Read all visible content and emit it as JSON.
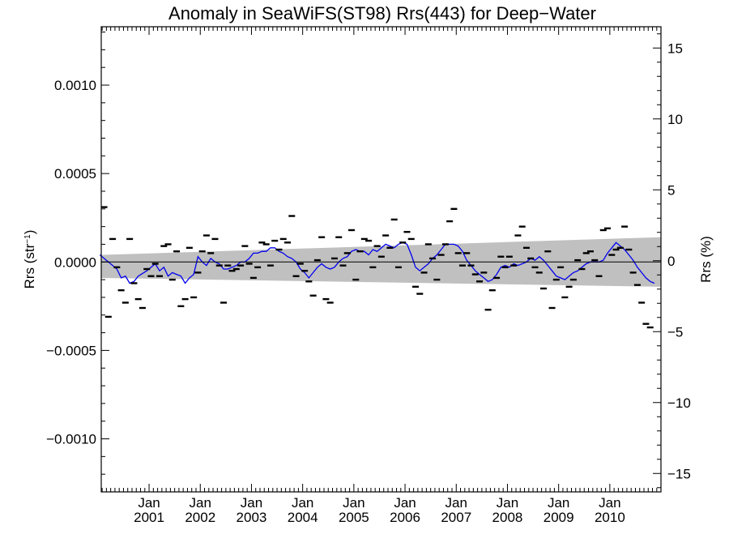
{
  "chart_data": {
    "type": "scatter",
    "title": "Anomaly in SeaWiFS(ST98) Rrs(443) for Deep−Water",
    "ylabel_left": "Rrs (str⁻¹)",
    "ylabel_right": "Rrs (%)",
    "x_ticks": [
      {
        "month": "Jan",
        "year": "2001"
      },
      {
        "month": "Jan",
        "year": "2002"
      },
      {
        "month": "Jan",
        "year": "2003"
      },
      {
        "month": "Jan",
        "year": "2004"
      },
      {
        "month": "Jan",
        "year": "2005"
      },
      {
        "month": "Jan",
        "year": "2006"
      },
      {
        "month": "Jan",
        "year": "2007"
      },
      {
        "month": "Jan",
        "year": "2008"
      },
      {
        "month": "Jan",
        "year": "2009"
      },
      {
        "month": "Jan",
        "year": "2010"
      }
    ],
    "x_range": [
      "2000-01-25",
      "2010-12-31"
    ],
    "y_left_range": [
      -0.0013,
      0.00133
    ],
    "y_left_ticks": [
      "0.0010",
      "0.0005",
      "0.0000",
      "−0.0005",
      "−0.0010"
    ],
    "y_left_tick_values": [
      0.001,
      0.0005,
      0.0,
      -0.0005,
      -0.001
    ],
    "y_right_range": [
      -16.3,
      16.5
    ],
    "y_right_ticks": [
      "15",
      "10",
      "5",
      "0",
      "−5",
      "−10",
      "−15"
    ],
    "y_right_tick_values": [
      15,
      10,
      5,
      0,
      -5,
      -10,
      -15
    ],
    "zero_line": 0,
    "confidence_band": {
      "color": "#c0c0c0",
      "start": {
        "date": "2000-01-25",
        "upper": 4e-05,
        "lower": -9e-05
      },
      "end": {
        "date": "2010-12-31",
        "upper": 0.00014,
        "lower": -0.00014
      }
    },
    "series": [
      {
        "style": "dash-markers",
        "color": "#000000",
        "points": [
          [
            "2000-02",
            0.00031
          ],
          [
            "2000-03",
            -0.00031
          ],
          [
            "2000-04",
            0.00013
          ],
          [
            "2000-05",
            -3e-05
          ],
          [
            "2000-06",
            -0.00016
          ],
          [
            "2000-07",
            -0.00023
          ],
          [
            "2000-08",
            0.00013
          ],
          [
            "2000-09",
            -0.00012
          ],
          [
            "2000-10",
            -0.00021
          ],
          [
            "2000-11",
            -0.00026
          ],
          [
            "2000-12",
            -4e-05
          ],
          [
            "2001-01",
            -8e-05
          ],
          [
            "2001-02",
            -1e-05
          ],
          [
            "2001-03",
            -8e-05
          ],
          [
            "2001-04",
            9e-05
          ],
          [
            "2001-05",
            0.0001
          ],
          [
            "2001-06",
            -0.0001
          ],
          [
            "2001-07",
            6e-05
          ],
          [
            "2001-08",
            -0.00025
          ],
          [
            "2001-09",
            -0.00021
          ],
          [
            "2001-10",
            8e-05
          ],
          [
            "2001-11",
            -0.0002
          ],
          [
            "2001-12",
            -6e-05
          ],
          [
            "2002-01",
            6e-05
          ],
          [
            "2002-02",
            0.00015
          ],
          [
            "2002-03",
            5e-05
          ],
          [
            "2002-04",
            0.00013
          ],
          [
            "2002-05",
            -2e-05
          ],
          [
            "2002-06",
            -0.00023
          ],
          [
            "2002-07",
            -2e-05
          ],
          [
            "2002-08",
            -5e-05
          ],
          [
            "2002-09",
            -4e-05
          ],
          [
            "2002-10",
            -2e-05
          ],
          [
            "2002-11",
            9e-05
          ],
          [
            "2002-12",
            -1e-05
          ],
          [
            "2003-01",
            -9e-05
          ],
          [
            "2003-02",
            -3e-05
          ],
          [
            "2003-03",
            0.00011
          ],
          [
            "2003-04",
            0.0001
          ],
          [
            "2003-05",
            -2e-05
          ],
          [
            "2003-06",
            0.00012
          ],
          [
            "2003-07",
            7e-05
          ],
          [
            "2003-08",
            0.00013
          ],
          [
            "2003-09",
            0.00011
          ],
          [
            "2003-10",
            0.00026
          ],
          [
            "2003-11",
            -8e-05
          ],
          [
            "2003-12",
            -1e-05
          ],
          [
            "2004-01",
            -5e-05
          ],
          [
            "2004-02",
            -0.00011
          ],
          [
            "2004-03",
            -0.00019
          ],
          [
            "2004-04",
            1e-05
          ],
          [
            "2004-05",
            0.00014
          ],
          [
            "2004-06",
            -0.00021
          ],
          [
            "2004-07",
            -0.00023
          ],
          [
            "2004-08",
            2e-05
          ],
          [
            "2004-09",
            0.00014
          ],
          [
            "2004-10",
            -2e-05
          ],
          [
            "2004-11",
            5e-05
          ],
          [
            "2004-12",
            0.00018
          ],
          [
            "2005-01",
            -0.0001
          ],
          [
            "2005-02",
            6e-05
          ],
          [
            "2005-03",
            0.00013
          ],
          [
            "2005-04",
            0.00012
          ],
          [
            "2005-05",
            -3e-05
          ],
          [
            "2005-06",
            9e-05
          ],
          [
            "2005-07",
            3e-05
          ],
          [
            "2005-08",
            0.00015
          ],
          [
            "2005-09",
            8e-05
          ],
          [
            "2005-10",
            0.00024
          ],
          [
            "2005-11",
            -3e-05
          ],
          [
            "2005-12",
            0.00011
          ],
          [
            "2006-01",
            0.00017
          ],
          [
            "2006-02",
            0.00013
          ],
          [
            "2006-03",
            -0.00014
          ],
          [
            "2006-04",
            -0.00018
          ],
          [
            "2006-05",
            -6e-05
          ],
          [
            "2006-06",
            0.0001
          ],
          [
            "2006-07",
            2e-05
          ],
          [
            "2006-08",
            -0.0001
          ],
          [
            "2006-09",
            4e-05
          ],
          [
            "2006-10",
            0.0001
          ],
          [
            "2006-11",
            0.00023
          ],
          [
            "2006-12",
            0.0003
          ],
          [
            "2007-01",
            5e-05
          ],
          [
            "2007-02",
            -2e-05
          ],
          [
            "2007-03",
            5e-05
          ],
          [
            "2007-04",
            -2e-05
          ],
          [
            "2007-05",
            -7e-05
          ],
          [
            "2007-06",
            -0.00011
          ],
          [
            "2007-07",
            -6e-05
          ],
          [
            "2007-08",
            -0.00027
          ],
          [
            "2007-09",
            -0.00016
          ],
          [
            "2007-10",
            -9e-05
          ],
          [
            "2007-11",
            3e-05
          ],
          [
            "2007-12",
            -3e-05
          ],
          [
            "2008-01",
            3e-05
          ],
          [
            "2008-02",
            -2e-05
          ],
          [
            "2008-03",
            0.00015
          ],
          [
            "2008-04",
            0.0002
          ],
          [
            "2008-05",
            8e-05
          ],
          [
            "2008-06",
            2e-05
          ],
          [
            "2008-07",
            -3e-05
          ],
          [
            "2008-08",
            -6e-05
          ],
          [
            "2008-09",
            -0.00015
          ],
          [
            "2008-10",
            6e-05
          ],
          [
            "2008-11",
            -0.00026
          ],
          [
            "2008-12",
            -0.0001
          ],
          [
            "2009-01",
            -3e-05
          ],
          [
            "2009-02",
            -0.0002
          ],
          [
            "2009-03",
            -0.00014
          ],
          [
            "2009-04",
            -0.0001
          ],
          [
            "2009-05",
            1e-05
          ],
          [
            "2009-06",
            -4e-05
          ],
          [
            "2009-07",
            5e-05
          ],
          [
            "2009-08",
            6e-05
          ],
          [
            "2009-09",
            1e-05
          ],
          [
            "2009-10",
            -8e-05
          ],
          [
            "2009-11",
            0.00018
          ],
          [
            "2009-12",
            0.00019
          ],
          [
            "2010-01",
            4e-05
          ],
          [
            "2010-02",
            7e-05
          ],
          [
            "2010-03",
            8e-05
          ],
          [
            "2010-04",
            0.0002
          ],
          [
            "2010-05",
            7e-05
          ],
          [
            "2010-06",
            -6e-05
          ],
          [
            "2010-07",
            -0.00013
          ],
          [
            "2010-08",
            -0.00023
          ],
          [
            "2010-09",
            -0.00035
          ],
          [
            "2010-10",
            -0.00037
          ]
        ]
      },
      {
        "style": "line",
        "color": "#0000ee",
        "points": [
          [
            "2000-01",
            4e-05
          ],
          [
            "2000-03",
            0.0
          ],
          [
            "2000-05",
            -4e-05
          ],
          [
            "2000-06",
            -9e-05
          ],
          [
            "2000-07",
            -8e-05
          ],
          [
            "2000-08",
            -0.00012
          ],
          [
            "2000-09",
            -0.00011
          ],
          [
            "2000-10",
            -8e-05
          ],
          [
            "2000-12",
            -5e-05
          ],
          [
            "2001-02",
            -1e-05
          ],
          [
            "2001-03",
            -5e-05
          ],
          [
            "2001-04",
            -3e-05
          ],
          [
            "2001-05",
            -8e-05
          ],
          [
            "2001-06",
            -6e-05
          ],
          [
            "2001-07",
            -7e-05
          ],
          [
            "2001-08",
            -8e-05
          ],
          [
            "2001-09",
            -0.00012
          ],
          [
            "2001-10",
            -9e-05
          ],
          [
            "2001-11",
            -7e-05
          ],
          [
            "2001-12",
            3e-05
          ],
          [
            "2002-01",
            0.0
          ],
          [
            "2002-02",
            -2e-05
          ],
          [
            "2002-03",
            2e-05
          ],
          [
            "2002-04",
            0.0
          ],
          [
            "2002-05",
            -1e-05
          ],
          [
            "2002-06",
            -4e-05
          ],
          [
            "2002-07",
            -4e-05
          ],
          [
            "2002-08",
            -3e-05
          ],
          [
            "2002-09",
            -2e-05
          ],
          [
            "2002-10",
            0.0
          ],
          [
            "2002-11",
            0.0
          ],
          [
            "2002-12",
            2e-05
          ],
          [
            "2003-01",
            5e-05
          ],
          [
            "2003-02",
            5e-05
          ],
          [
            "2003-03",
            6e-05
          ],
          [
            "2003-04",
            6e-05
          ],
          [
            "2003-05",
            8e-05
          ],
          [
            "2003-06",
            8e-05
          ],
          [
            "2003-07",
            6e-05
          ],
          [
            "2003-08",
            5e-05
          ],
          [
            "2003-09",
            3e-05
          ],
          [
            "2003-10",
            2e-05
          ],
          [
            "2003-11",
            0.0
          ],
          [
            "2003-12",
            -4e-05
          ],
          [
            "2004-01",
            -6e-05
          ],
          [
            "2004-02",
            -9e-05
          ],
          [
            "2004-03",
            -6e-05
          ],
          [
            "2004-04",
            -3e-05
          ],
          [
            "2004-05",
            -1e-05
          ],
          [
            "2004-06",
            -3e-05
          ],
          [
            "2004-07",
            -4e-05
          ],
          [
            "2004-08",
            -3e-05
          ],
          [
            "2004-09",
            0.0
          ],
          [
            "2004-10",
            2e-05
          ],
          [
            "2004-11",
            3e-05
          ],
          [
            "2004-12",
            6e-05
          ],
          [
            "2005-01",
            7e-05
          ],
          [
            "2005-02",
            6e-05
          ],
          [
            "2005-03",
            6e-05
          ],
          [
            "2005-04",
            4e-05
          ],
          [
            "2005-05",
            7e-05
          ],
          [
            "2005-06",
            6e-05
          ],
          [
            "2005-07",
            8e-05
          ],
          [
            "2005-08",
            0.0001
          ],
          [
            "2005-09",
            9e-05
          ],
          [
            "2005-10",
            8e-05
          ],
          [
            "2005-11",
            0.0001
          ],
          [
            "2005-12",
            0.00011
          ],
          [
            "2006-01",
            0.0001
          ],
          [
            "2006-02",
            4e-05
          ],
          [
            "2006-03",
            -3e-05
          ],
          [
            "2006-04",
            -5e-05
          ],
          [
            "2006-05",
            -3e-05
          ],
          [
            "2006-06",
            -1e-05
          ],
          [
            "2006-07",
            2e-05
          ],
          [
            "2006-08",
            4e-05
          ],
          [
            "2006-09",
            7e-05
          ],
          [
            "2006-10",
            0.0001
          ],
          [
            "2006-11",
            0.0001
          ],
          [
            "2006-12",
            0.0001
          ],
          [
            "2007-01",
            9e-05
          ],
          [
            "2007-02",
            6e-05
          ],
          [
            "2007-03",
            1e-05
          ],
          [
            "2007-04",
            -2e-05
          ],
          [
            "2007-05",
            -5e-05
          ],
          [
            "2007-06",
            -7e-05
          ],
          [
            "2007-07",
            -9e-05
          ],
          [
            "2007-08",
            -0.00011
          ],
          [
            "2007-09",
            -0.0001
          ],
          [
            "2007-10",
            -7e-05
          ],
          [
            "2007-11",
            -3e-05
          ],
          [
            "2007-12",
            -2e-05
          ],
          [
            "2008-01",
            -3e-05
          ],
          [
            "2008-02",
            -1e-05
          ],
          [
            "2008-03",
            -2e-05
          ],
          [
            "2008-04",
            -1e-05
          ],
          [
            "2008-05",
            0.0
          ],
          [
            "2008-06",
            2e-05
          ],
          [
            "2008-07",
            1e-05
          ],
          [
            "2008-08",
            3e-05
          ],
          [
            "2008-09",
            1e-05
          ],
          [
            "2008-10",
            -2e-05
          ],
          [
            "2008-11",
            -5e-05
          ],
          [
            "2008-12",
            -8e-05
          ],
          [
            "2009-01",
            -9e-05
          ],
          [
            "2009-02",
            -0.0001
          ],
          [
            "2009-03",
            -8e-05
          ],
          [
            "2009-04",
            -6e-05
          ],
          [
            "2009-05",
            -5e-05
          ],
          [
            "2009-06",
            -3e-05
          ],
          [
            "2009-07",
            -1e-05
          ],
          [
            "2009-08",
            0.0
          ],
          [
            "2009-09",
            0.0
          ],
          [
            "2009-10",
            0.0
          ],
          [
            "2009-11",
            1e-05
          ],
          [
            "2009-12",
            5e-05
          ],
          [
            "2010-01",
            8e-05
          ],
          [
            "2010-02",
            0.00011
          ],
          [
            "2010-03",
            9e-05
          ],
          [
            "2010-04",
            7e-05
          ],
          [
            "2010-05",
            4e-05
          ],
          [
            "2010-06",
            1e-05
          ],
          [
            "2010-07",
            -3e-05
          ],
          [
            "2010-08",
            -6e-05
          ],
          [
            "2010-09",
            -9e-05
          ],
          [
            "2010-10",
            -0.00011
          ],
          [
            "2010-11",
            -0.00012
          ]
        ]
      }
    ]
  }
}
